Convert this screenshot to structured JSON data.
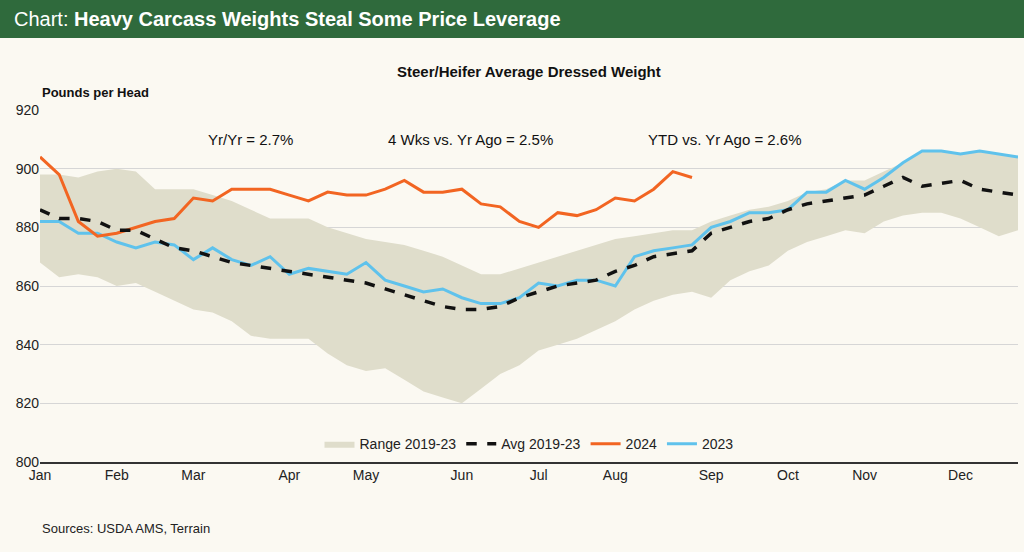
{
  "chart_data": {
    "type": "line",
    "title": "Chart: Heavy Carcass Weights Steal Some Price Leverage",
    "subtitle": "Steer/Heifer Average Dressed Weight",
    "y_label": "Pounds per Head",
    "annotations": [
      "Yr/Yr = 2.7%",
      "4 Wks vs. Yr Ago = 2.5%",
      "YTD vs. Yr Ago = 2.6%"
    ],
    "source": "Sources: USDA AMS, Terrain",
    "categories": [
      "Jan",
      null,
      null,
      null,
      "Feb",
      null,
      null,
      null,
      "Mar",
      null,
      null,
      null,
      null,
      "Apr",
      null,
      null,
      null,
      "May",
      null,
      null,
      null,
      null,
      "Jun",
      null,
      null,
      null,
      "Jul",
      null,
      null,
      null,
      "Aug",
      null,
      null,
      null,
      null,
      "Sep",
      null,
      null,
      null,
      "Oct",
      null,
      null,
      null,
      "Nov",
      null,
      null,
      null,
      null,
      "Dec",
      null,
      null,
      null
    ],
    "series": [
      {
        "name": "2023",
        "color": "#5fc2ec",
        "line_style": "solid",
        "values": [
          882,
          882,
          878,
          878,
          875,
          873,
          875,
          874,
          869,
          873,
          869,
          867,
          870,
          864,
          866,
          865,
          864,
          868,
          862,
          860,
          858,
          859,
          856,
          854,
          854,
          856,
          861,
          860,
          862,
          862,
          860,
          870,
          872,
          873,
          874,
          880,
          882,
          885,
          885,
          886,
          892,
          892,
          896,
          893,
          897,
          902,
          906,
          906,
          905,
          906,
          905,
          904
        ]
      },
      {
        "name": "2024",
        "color": "#f26522",
        "line_style": "solid",
        "values": [
          904,
          898,
          882,
          877,
          878,
          880,
          882,
          883,
          890,
          889,
          893,
          893,
          893,
          891,
          889,
          892,
          891,
          891,
          893,
          896,
          892,
          892,
          893,
          888,
          887,
          882,
          880,
          885,
          884,
          886,
          890,
          889,
          893,
          899,
          897,
          null,
          null,
          null,
          null,
          null,
          null,
          null,
          null,
          null,
          null,
          null,
          null,
          null,
          null,
          null,
          null,
          null
        ]
      },
      {
        "name": "Avg 2019-23",
        "color": "#111111",
        "line_style": "dashed",
        "values": [
          886,
          883,
          883,
          882,
          879,
          879,
          876,
          873,
          872,
          870,
          868,
          867,
          866,
          865,
          864,
          863,
          862,
          861,
          859,
          857,
          855,
          853,
          852,
          852,
          853,
          856,
          858,
          860,
          861,
          862,
          865,
          867,
          870,
          871,
          872,
          878,
          880,
          882,
          883,
          886,
          888,
          889,
          890,
          891,
          894,
          897,
          894,
          895,
          896,
          893,
          892,
          891
        ]
      },
      {
        "name": "Range 2019-23",
        "color": "#dfddcb",
        "type": "area",
        "high": [
          898,
          898,
          897,
          899,
          900,
          899,
          893,
          893,
          893,
          891,
          889,
          886,
          883,
          883,
          883,
          880,
          878,
          876,
          875,
          874,
          872,
          870,
          867,
          864,
          864,
          866,
          868,
          870,
          872,
          874,
          876,
          877,
          878,
          879,
          879,
          882,
          884,
          886,
          887,
          889,
          892,
          893,
          896,
          896,
          899,
          902,
          906,
          906,
          905,
          906,
          905,
          904
        ],
        "low": [
          868,
          863,
          864,
          863,
          860,
          861,
          858,
          855,
          852,
          851,
          848,
          843,
          842,
          842,
          842,
          837,
          833,
          831,
          832,
          828,
          824,
          822,
          820,
          825,
          830,
          833,
          838,
          840,
          842,
          845,
          848,
          852,
          855,
          857,
          858,
          856,
          862,
          865,
          867,
          872,
          875,
          877,
          879,
          878,
          882,
          884,
          885,
          885,
          883,
          880,
          877,
          879
        ]
      }
    ],
    "ylim": [
      800,
      920
    ],
    "yticks": [
      800,
      820,
      840,
      860,
      880,
      900,
      920
    ],
    "grid": true,
    "legend": "bottom"
  }
}
